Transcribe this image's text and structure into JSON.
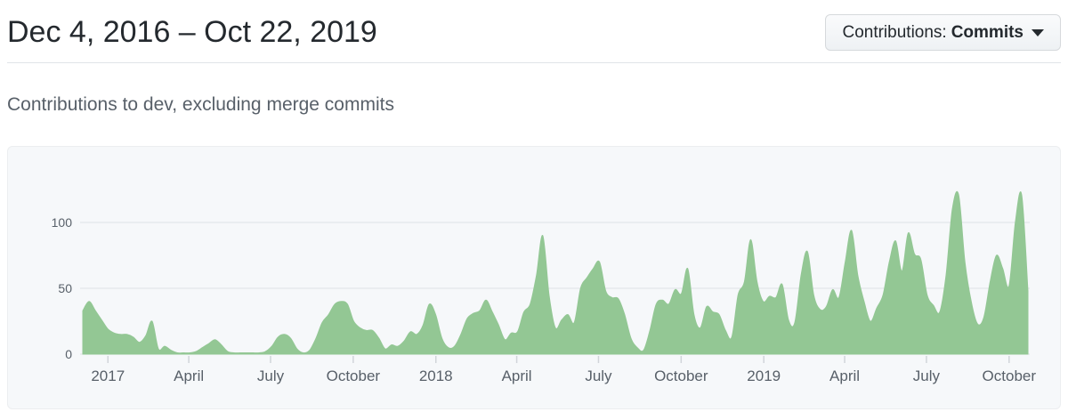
{
  "header": {
    "title": "Dec 4, 2016 – Oct 22, 2019",
    "filter_button": {
      "prefix": "Contributions:",
      "value": "Commits"
    }
  },
  "subtitle": "Contributions to dev, excluding merge commits",
  "colors": {
    "title_text": "#24292e",
    "muted_text": "#586069",
    "divider": "#e1e4e8",
    "card_bg": "#f6f8fa",
    "grid": "#dfe2e5",
    "tick": "#d1d5da",
    "area_fill": "#93c794"
  },
  "chart_data": {
    "type": "area",
    "ylabel": "",
    "xlabel": "",
    "ylim": [
      0,
      158
    ],
    "yticks": [
      0,
      50,
      100
    ],
    "grid": "horizontal",
    "legend": "none",
    "total_days": 1052,
    "xticks": [
      {
        "label": "2017",
        "day": 28
      },
      {
        "label": "April",
        "day": 118
      },
      {
        "label": "July",
        "day": 209
      },
      {
        "label": "October",
        "day": 301
      },
      {
        "label": "2018",
        "day": 393
      },
      {
        "label": "April",
        "day": 483
      },
      {
        "label": "July",
        "day": 574
      },
      {
        "label": "October",
        "day": 666
      },
      {
        "label": "2019",
        "day": 758
      },
      {
        "label": "April",
        "day": 848
      },
      {
        "label": "July",
        "day": 939
      },
      {
        "label": "October",
        "day": 1031
      }
    ],
    "series": [
      {
        "name": "Commits",
        "cadence": "weekly",
        "values": [
          33,
          40,
          33,
          26,
          19,
          16,
          15,
          15,
          13,
          9,
          14,
          25,
          4,
          6,
          3,
          1,
          1,
          1,
          2,
          5,
          8,
          11,
          7,
          2,
          1,
          1,
          1,
          1,
          1,
          2,
          6,
          13,
          15,
          12,
          4,
          1,
          3,
          12,
          24,
          30,
          38,
          40,
          38,
          25,
          20,
          18,
          18,
          12,
          4,
          7,
          6,
          10,
          17,
          15,
          22,
          38,
          30,
          12,
          5,
          6,
          15,
          27,
          31,
          33,
          41,
          32,
          22,
          11,
          16,
          17,
          32,
          38,
          60,
          90,
          45,
          20,
          26,
          30,
          24,
          50,
          58,
          65,
          70,
          48,
          43,
          42,
          30,
          12,
          5,
          3,
          18,
          38,
          41,
          38,
          49,
          46,
          65,
          30,
          20,
          36,
          32,
          30,
          18,
          13,
          45,
          55,
          87,
          55,
          40,
          44,
          43,
          53,
          26,
          24,
          60,
          78,
          45,
          34,
          36,
          49,
          43,
          70,
          94,
          60,
          40,
          25,
          35,
          45,
          70,
          86,
          63,
          92,
          76,
          72,
          45,
          37,
          32,
          60,
          110,
          121,
          70,
          40,
          23,
          28,
          55,
          75,
          65,
          52,
          100,
          121,
          48
        ]
      }
    ]
  }
}
